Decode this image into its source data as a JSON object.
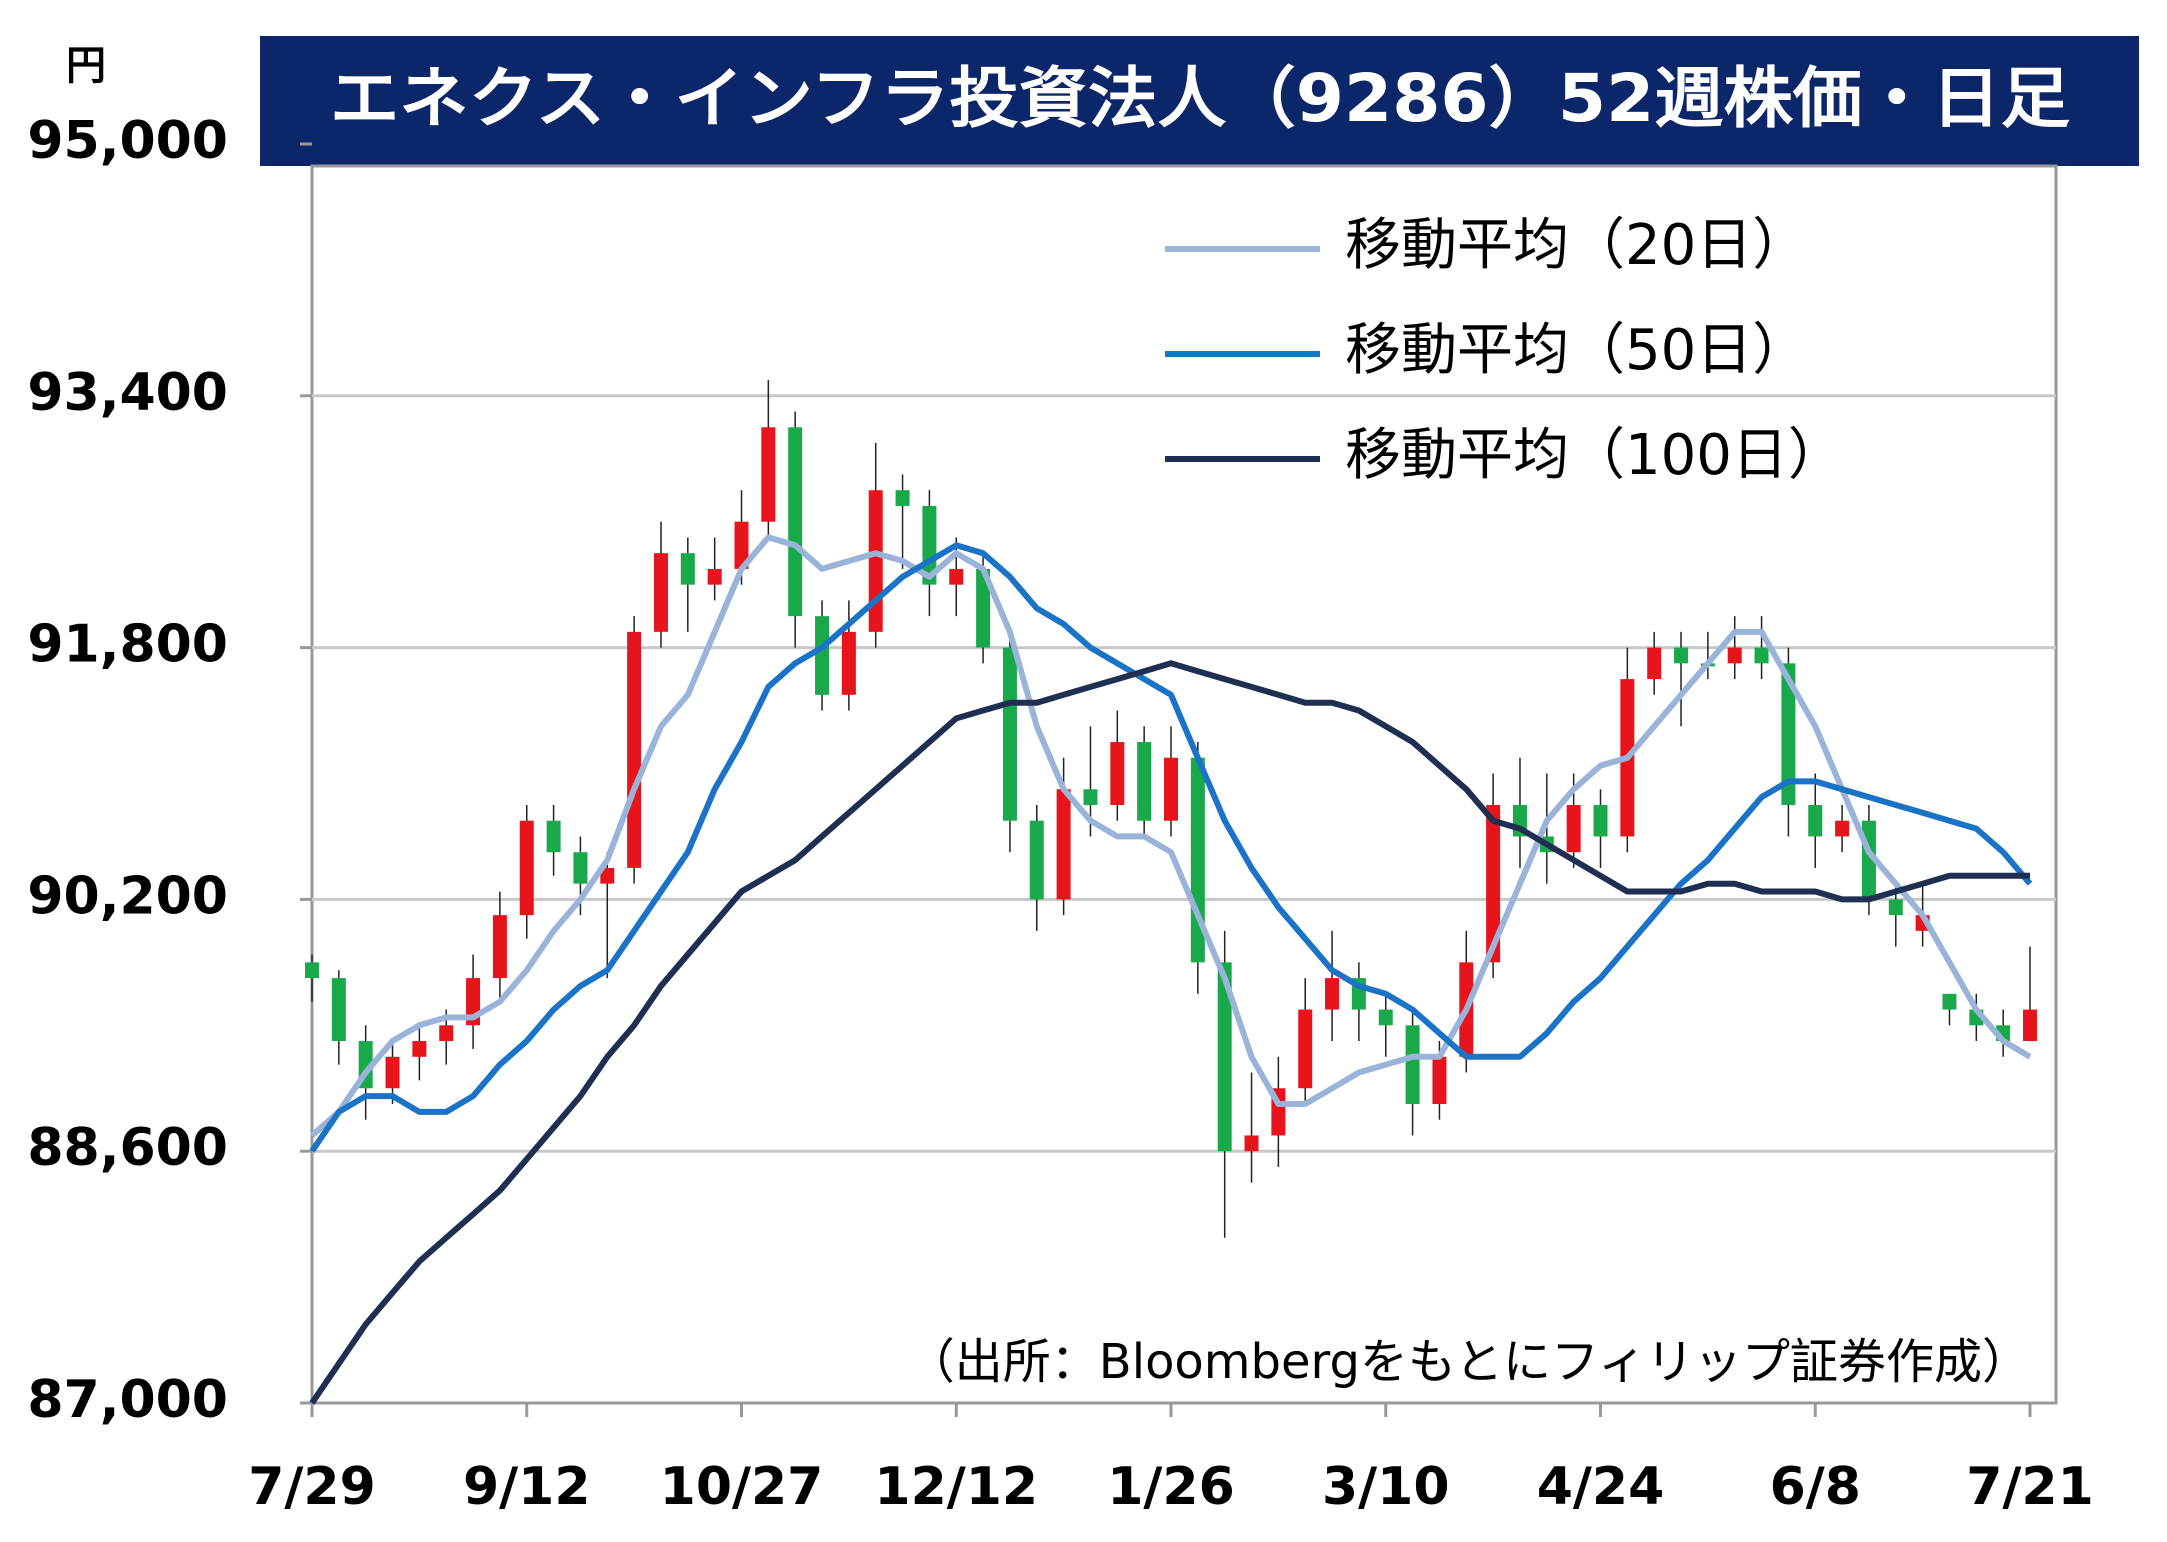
{
  "chart_data": {
    "type": "candlestick",
    "title": "エネクス・インフラ投資法人（9286）52週株価・日足",
    "y_unit": "円",
    "source": "（出所：Bloombergをもとにフィリップ証券作成）",
    "categories": [
      "7/29",
      null,
      null,
      null,
      null,
      null,
      null,
      null,
      "9/12",
      null,
      null,
      null,
      null,
      null,
      null,
      null,
      "10/27",
      null,
      null,
      null,
      null,
      null,
      null,
      null,
      "12/12",
      null,
      null,
      null,
      null,
      null,
      null,
      null,
      "1/26",
      null,
      null,
      null,
      null,
      null,
      null,
      null,
      "3/10",
      null,
      null,
      null,
      null,
      null,
      null,
      null,
      "4/24",
      null,
      null,
      null,
      null,
      null,
      null,
      null,
      "6/8",
      null,
      null,
      null,
      null,
      null,
      null,
      null,
      "7/21"
    ],
    "open": [
      89800,
      89700,
      89300,
      89000,
      89200,
      89300,
      89400,
      89700,
      90100,
      90700,
      90500,
      90300,
      90400,
      91900,
      92400,
      92200,
      92300,
      92600,
      93200,
      92000,
      91500,
      91900,
      92800,
      92700,
      92200,
      92300,
      91800,
      90700,
      90200,
      90900,
      90800,
      91200,
      90700,
      91100,
      89800,
      88600,
      88700,
      89000,
      89500,
      89700,
      89500,
      89400,
      88900,
      89200,
      89800,
      90800,
      90600,
      90500,
      90800,
      90600,
      91600,
      91800,
      91700,
      91700,
      91800,
      91700,
      90800,
      90600,
      90700,
      90200,
      90000,
      89600,
      89500,
      89400,
      89300
    ],
    "high": [
      89850,
      89750,
      89400,
      89300,
      89400,
      89500,
      89850,
      90250,
      90800,
      90800,
      90600,
      90500,
      92000,
      92600,
      92500,
      92500,
      92800,
      93500,
      93300,
      92100,
      92100,
      93100,
      92900,
      92800,
      92500,
      92400,
      91900,
      90800,
      91100,
      91300,
      91400,
      91300,
      91300,
      91200,
      90000,
      89100,
      89200,
      89700,
      90000,
      89800,
      89600,
      89500,
      89300,
      90000,
      91000,
      91100,
      91000,
      91000,
      90900,
      91800,
      91900,
      91900,
      91900,
      92000,
      92000,
      91800,
      91000,
      90800,
      90800,
      90300,
      90300,
      89600,
      89600,
      89500,
      89900
    ],
    "low": [
      89550,
      89150,
      88800,
      88900,
      89050,
      89150,
      89250,
      89550,
      89950,
      90350,
      90100,
      89700,
      90300,
      91800,
      91900,
      92100,
      92200,
      92500,
      91800,
      91400,
      91400,
      91800,
      92300,
      92000,
      92000,
      91700,
      90500,
      90000,
      90100,
      90600,
      90700,
      90600,
      90600,
      89600,
      88050,
      88400,
      88500,
      88900,
      89300,
      89300,
      89200,
      88700,
      88800,
      89100,
      89700,
      90400,
      90300,
      90400,
      90400,
      90500,
      91500,
      91300,
      91600,
      91600,
      91600,
      90600,
      90400,
      90500,
      90100,
      89900,
      89900,
      89400,
      89300,
      89200,
      89300
    ],
    "close": [
      89700,
      89300,
      89000,
      89200,
      89300,
      89400,
      89700,
      90100,
      90700,
      90500,
      90300,
      90400,
      91900,
      92400,
      92200,
      92300,
      92600,
      93200,
      92000,
      91500,
      91900,
      92800,
      92700,
      92200,
      92300,
      91800,
      90700,
      90200,
      90900,
      90800,
      91200,
      90700,
      91100,
      89800,
      88600,
      88700,
      89000,
      89500,
      89700,
      89500,
      89400,
      88900,
      89200,
      89800,
      90800,
      90600,
      90500,
      90800,
      90600,
      91600,
      91800,
      91700,
      91700,
      91800,
      91700,
      90800,
      90600,
      90700,
      90200,
      90100,
      90100,
      89500,
      89400,
      89300,
      89500
    ],
    "up_color": "#e8141b",
    "down_color": "#19a94b",
    "series": [
      {
        "name": "移動平均（20日）",
        "color": "#9ab3d8",
        "values": [
          88700,
          88850,
          89100,
          89300,
          89400,
          89450,
          89450,
          89550,
          89750,
          90000,
          90200,
          90450,
          90900,
          91300,
          91500,
          91900,
          92300,
          92500,
          92450,
          92300,
          92350,
          92400,
          92350,
          92250,
          92400,
          92300,
          91900,
          91300,
          90900,
          90700,
          90600,
          90600,
          90500,
          90100,
          89700,
          89200,
          88900,
          88900,
          89000,
          89100,
          89150,
          89200,
          89200,
          89500,
          89900,
          90300,
          90700,
          90900,
          91050,
          91100,
          91300,
          91500,
          91700,
          91900,
          91900,
          91600,
          91300,
          90900,
          90500,
          90300,
          90100,
          89800,
          89500,
          89300,
          89200
        ]
      },
      {
        "name": "移動平均（50日）",
        "color": "#1a73c6",
        "values": [
          88600,
          88850,
          88950,
          88950,
          88850,
          88850,
          88950,
          89150,
          89300,
          89500,
          89650,
          89750,
          90000,
          90250,
          90500,
          90900,
          91200,
          91550,
          91700,
          91800,
          91950,
          92100,
          92250,
          92350,
          92450,
          92400,
          92250,
          92050,
          91950,
          91800,
          91700,
          91600,
          91500,
          91100,
          90700,
          90400,
          90150,
          89950,
          89750,
          89650,
          89600,
          89500,
          89350,
          89200,
          89200,
          89200,
          89350,
          89550,
          89700,
          89900,
          90100,
          90300,
          90450,
          90650,
          90850,
          90950,
          90950,
          90900,
          90850,
          90800,
          90750,
          90700,
          90650,
          90500,
          90300
        ]
      },
      {
        "name": "移動平均（100日）",
        "color": "#1e2f52",
        "values": [
          87000,
          87250,
          87500,
          87700,
          87900,
          88050,
          88200,
          88350,
          88550,
          88750,
          88950,
          89200,
          89400,
          89650,
          89850,
          90050,
          90250,
          90350,
          90450,
          90600,
          90750,
          90900,
          91050,
          91200,
          91350,
          91400,
          91450,
          91450,
          91500,
          91550,
          91600,
          91650,
          91700,
          91650,
          91600,
          91550,
          91500,
          91450,
          91450,
          91400,
          91300,
          91200,
          91050,
          90900,
          90700,
          90650,
          90550,
          90450,
          90350,
          90250,
          90250,
          90250,
          90300,
          90300,
          90250,
          90250,
          90250,
          90200,
          90200,
          90250,
          90300,
          90350,
          90350,
          90350,
          90350
        ]
      }
    ],
    "ylim": [
      87000,
      95000
    ],
    "yticks": [
      {
        "value": 87000,
        "label": "87,000"
      },
      {
        "value": 88600,
        "label": "88,600"
      },
      {
        "value": 90200,
        "label": "90,200"
      },
      {
        "value": 91800,
        "label": "91,800"
      },
      {
        "value": 93400,
        "label": "93,400"
      },
      {
        "value": 95000,
        "label": "95,000"
      }
    ],
    "grid": true,
    "legend": "upper right"
  }
}
